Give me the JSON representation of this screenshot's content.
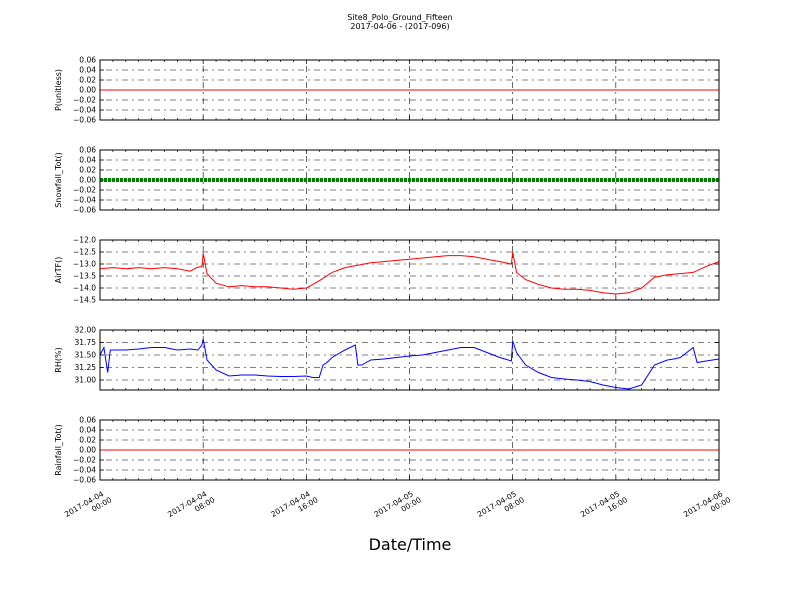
{
  "figure": {
    "title": "Site8_Polo_Ground_Fifteen",
    "subtitle": "2017-04-06 - (2017-096)",
    "xlabel": "Date/Time"
  },
  "chart_data": [
    {
      "type": "line",
      "ylabel": "P(unitless)",
      "ylim": [
        -0.06,
        0.06
      ],
      "yticks": [
        "0.06",
        "0.04",
        "0.02",
        "0.00",
        "−0.02",
        "−0.04",
        "−0.06"
      ],
      "grid": true,
      "color": "#ff0000",
      "x_hours": [
        0,
        48
      ],
      "y": [
        0,
        0
      ]
    },
    {
      "type": "scatter",
      "ylabel": "Snowfall_Tot()",
      "ylim": [
        -0.06,
        0.06
      ],
      "yticks": [
        "0.06",
        "0.04",
        "0.02",
        "0.00",
        "−0.02",
        "−0.04",
        "−0.06"
      ],
      "grid": true,
      "color": "#007f00",
      "x_hours": [
        0,
        48
      ],
      "y": [
        0,
        0
      ]
    },
    {
      "type": "line",
      "ylabel": "AirTF()",
      "ylim": [
        -14.5,
        -12.0
      ],
      "yticks": [
        "−12.0",
        "−12.5",
        "−13.0",
        "−13.5",
        "−14.0",
        "−14.5"
      ],
      "grid": true,
      "color": "#ff0000",
      "x_hours": [
        0,
        1,
        2,
        3,
        4,
        5,
        6,
        7,
        7.5,
        7.9,
        8.0,
        8.3,
        9,
        10,
        11,
        12,
        13,
        14,
        15,
        16,
        17,
        18,
        19,
        20,
        21,
        22,
        23,
        24,
        25,
        26,
        27,
        28,
        29,
        30,
        31,
        31.9,
        32.0,
        32.3,
        33,
        34,
        35,
        36,
        37,
        38,
        39,
        40,
        41,
        42,
        43,
        44,
        45,
        46,
        47,
        48
      ],
      "y": [
        -13.2,
        -13.15,
        -13.2,
        -13.15,
        -13.2,
        -13.15,
        -13.2,
        -13.3,
        -13.15,
        -13.1,
        -12.55,
        -13.4,
        -13.8,
        -13.95,
        -13.9,
        -13.95,
        -13.95,
        -14.0,
        -14.05,
        -14.0,
        -13.7,
        -13.35,
        -13.15,
        -13.05,
        -12.95,
        -12.9,
        -12.85,
        -12.8,
        -12.75,
        -12.7,
        -12.65,
        -12.65,
        -12.7,
        -12.8,
        -12.9,
        -13.0,
        -12.5,
        -13.35,
        -13.65,
        -13.85,
        -14.0,
        -14.05,
        -14.05,
        -14.1,
        -14.2,
        -14.25,
        -14.2,
        -14.0,
        -13.55,
        -13.45,
        -13.4,
        -13.35,
        -13.1,
        -12.9
      ]
    },
    {
      "type": "line",
      "ylabel": "RH(%)",
      "ylim": [
        30.8,
        32.0
      ],
      "yticks": [
        "32.00",
        "31.75",
        "31.50",
        "31.25",
        "31.00"
      ],
      "grid": true,
      "color": "#0000ff",
      "x_hours": [
        0,
        0.3,
        0.6,
        0.8,
        1,
        2,
        3,
        4,
        5,
        6,
        7,
        7.6,
        7.9,
        8.0,
        8.3,
        9,
        10,
        11,
        12,
        13,
        14,
        15,
        16,
        16.5,
        17,
        17.3,
        17.6,
        18,
        19,
        19.8,
        20,
        20.3,
        21,
        22,
        23,
        24,
        25,
        26,
        27,
        28,
        29,
        30,
        31,
        31.9,
        32.0,
        32.3,
        33,
        34,
        35,
        36,
        37,
        38,
        39,
        40,
        41,
        42,
        43,
        44,
        44.5,
        45,
        45.5,
        46,
        46.3,
        47,
        48
      ],
      "y": [
        31.5,
        31.65,
        31.15,
        31.6,
        31.6,
        31.6,
        31.62,
        31.65,
        31.65,
        31.6,
        31.62,
        31.6,
        31.7,
        31.82,
        31.4,
        31.2,
        31.08,
        31.1,
        31.1,
        31.08,
        31.07,
        31.07,
        31.08,
        31.05,
        31.05,
        31.3,
        31.35,
        31.45,
        31.6,
        31.7,
        31.3,
        31.3,
        31.4,
        31.42,
        31.45,
        31.48,
        31.5,
        31.55,
        31.6,
        31.65,
        31.65,
        31.55,
        31.45,
        31.38,
        31.78,
        31.55,
        31.3,
        31.15,
        31.05,
        31.02,
        31.0,
        30.97,
        30.9,
        30.85,
        30.82,
        30.9,
        31.3,
        31.4,
        31.42,
        31.45,
        31.55,
        31.65,
        31.35,
        31.38,
        31.42
      ]
    },
    {
      "type": "line",
      "ylabel": "Rainfall_Tot()",
      "ylim": [
        -0.06,
        0.06
      ],
      "yticks": [
        "0.06",
        "0.04",
        "0.02",
        "0.00",
        "−0.02",
        "−0.04",
        "−0.06"
      ],
      "grid": true,
      "color": "#ff0000",
      "x_hours": [
        0,
        48
      ],
      "y": [
        0,
        0
      ]
    }
  ],
  "xticks": {
    "hours": [
      0,
      8,
      16,
      24,
      32,
      40,
      48
    ],
    "date_labels": [
      "2017-04-04",
      "2017-04-04",
      "2017-04-04",
      "2017-04-05",
      "2017-04-05",
      "2017-04-05",
      "2017-04-06"
    ],
    "time_labels": [
      "00:00",
      "08:00",
      "16:00",
      "00:00",
      "08:00",
      "16:00",
      "00:00"
    ]
  }
}
